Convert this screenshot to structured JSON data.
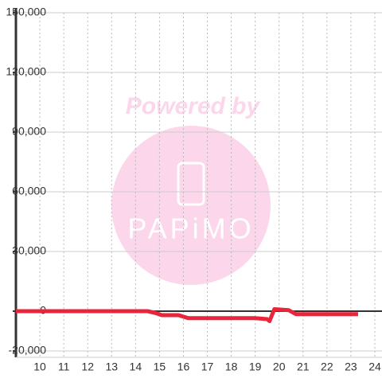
{
  "chart_data": {
    "type": "line",
    "x": [
      9,
      14.5,
      14.8,
      15.1,
      15.8,
      16.2,
      17,
      18,
      19,
      19.5,
      19.6,
      19.8,
      20.4,
      20.7,
      21,
      22,
      23,
      23.3
    ],
    "series": [
      {
        "name": null,
        "color": "#e8253a",
        "values": [
          0,
          0,
          -800,
          -2000,
          -2000,
          -3500,
          -3500,
          -3500,
          -3500,
          -4000,
          -5000,
          1000,
          500,
          -1500,
          -1500,
          -1500,
          -1500,
          -1500
        ]
      }
    ],
    "xlim": [
      9,
      24.3
    ],
    "xticks": [
      10,
      11,
      12,
      13,
      14,
      15,
      16,
      17,
      18,
      19,
      20,
      21,
      22,
      23,
      24
    ],
    "ylim": [
      -20000,
      150000
    ],
    "yticks": [
      {
        "value": -20000,
        "label": "-20,000"
      },
      0,
      {
        "value": 30000,
        "label": "30,000"
      },
      {
        "value": 60000,
        "label": "60,000"
      },
      {
        "value": 90000,
        "label": "90,000"
      },
      {
        "value": 120000,
        "label": "120,000"
      },
      {
        "value": 150000,
        "label": "150,000"
      }
    ],
    "grid": true,
    "watermark": {
      "line1": "Powered by",
      "line2": "PAPiMO"
    }
  }
}
